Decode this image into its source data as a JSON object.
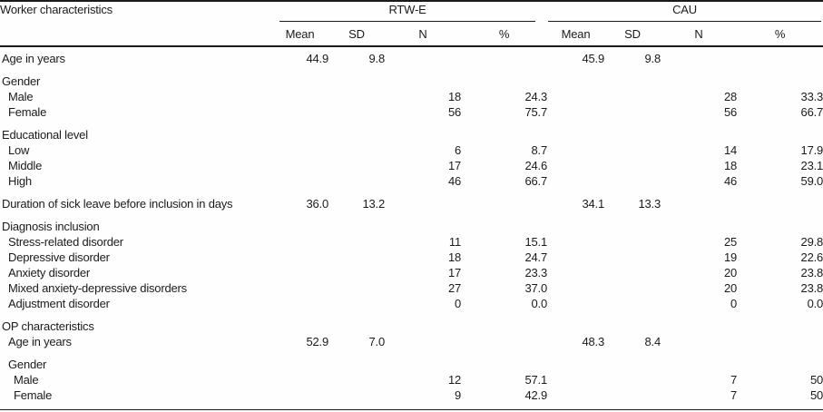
{
  "table": {
    "corner_label": "Worker characteristics",
    "group_headers": [
      {
        "label": "RTW-E"
      },
      {
        "label": "CAU"
      }
    ],
    "column_headers": [
      "Mean",
      "SD",
      "N",
      "%",
      "Mean",
      "SD",
      "N",
      "%"
    ],
    "rows": [
      {
        "label": "Age in years",
        "indent": 0,
        "section_gap": false,
        "cells": [
          "44.9",
          "9.8",
          "",
          "",
          "45.9",
          "9.8",
          "",
          ""
        ]
      },
      {
        "label": "Gender",
        "indent": 0,
        "section_gap": true,
        "cells": [
          "",
          "",
          "",
          "",
          "",
          "",
          "",
          ""
        ]
      },
      {
        "label": "Male",
        "indent": 1,
        "section_gap": false,
        "cells": [
          "",
          "",
          "18",
          "24.3",
          "",
          "",
          "28",
          "33.3"
        ]
      },
      {
        "label": "Female",
        "indent": 1,
        "section_gap": false,
        "cells": [
          "",
          "",
          "56",
          "75.7",
          "",
          "",
          "56",
          "66.7"
        ]
      },
      {
        "label": "Educational level",
        "indent": 0,
        "section_gap": true,
        "cells": [
          "",
          "",
          "",
          "",
          "",
          "",
          "",
          ""
        ]
      },
      {
        "label": "Low",
        "indent": 1,
        "section_gap": false,
        "cells": [
          "",
          "",
          "6",
          "8.7",
          "",
          "",
          "14",
          "17.9"
        ]
      },
      {
        "label": "Middle",
        "indent": 1,
        "section_gap": false,
        "cells": [
          "",
          "",
          "17",
          "24.6",
          "",
          "",
          "18",
          "23.1"
        ]
      },
      {
        "label": "High",
        "indent": 1,
        "section_gap": false,
        "cells": [
          "",
          "",
          "46",
          "66.7",
          "",
          "",
          "46",
          "59.0"
        ]
      },
      {
        "label": "Duration of sick leave before inclusion in days",
        "indent": 0,
        "section_gap": true,
        "cells": [
          "36.0",
          "13.2",
          "",
          "",
          "34.1",
          "13.3",
          "",
          ""
        ]
      },
      {
        "label": "Diagnosis inclusion",
        "indent": 0,
        "section_gap": true,
        "cells": [
          "",
          "",
          "",
          "",
          "",
          "",
          "",
          ""
        ]
      },
      {
        "label": "Stress-related disorder",
        "indent": 1,
        "section_gap": false,
        "cells": [
          "",
          "",
          "11",
          "15.1",
          "",
          "",
          "25",
          "29.8"
        ]
      },
      {
        "label": "Depressive disorder",
        "indent": 1,
        "section_gap": false,
        "cells": [
          "",
          "",
          "18",
          "24.7",
          "",
          "",
          "19",
          "22.6"
        ]
      },
      {
        "label": "Anxiety disorder",
        "indent": 1,
        "section_gap": false,
        "cells": [
          "",
          "",
          "17",
          "23.3",
          "",
          "",
          "20",
          "23.8"
        ]
      },
      {
        "label": "Mixed anxiety-depressive disorders",
        "indent": 1,
        "section_gap": false,
        "cells": [
          "",
          "",
          "27",
          "37.0",
          "",
          "",
          "20",
          "23.8"
        ]
      },
      {
        "label": "Adjustment disorder",
        "indent": 1,
        "section_gap": false,
        "cells": [
          "",
          "",
          "0",
          "0.0",
          "",
          "",
          "0",
          "0.0"
        ]
      },
      {
        "label": "OP characteristics",
        "indent": 0,
        "section_gap": true,
        "cells": [
          "",
          "",
          "",
          "",
          "",
          "",
          "",
          ""
        ]
      },
      {
        "label": "Age in years",
        "indent": 1,
        "section_gap": false,
        "cells": [
          "52.9",
          "7.0",
          "",
          "",
          "48.3",
          "8.4",
          "",
          ""
        ]
      },
      {
        "label": "Gender",
        "indent": 1,
        "section_gap": true,
        "cells": [
          "",
          "",
          "",
          "",
          "",
          "",
          "",
          ""
        ]
      },
      {
        "label": "Male",
        "indent": 2,
        "section_gap": false,
        "cells": [
          "",
          "",
          "12",
          "57.1",
          "",
          "",
          "7",
          "50"
        ]
      },
      {
        "label": "Female",
        "indent": 2,
        "section_gap": false,
        "cells": [
          "",
          "",
          "9",
          "42.9",
          "",
          "",
          "7",
          "50"
        ]
      }
    ],
    "cell_column_names": [
      "rtwe-mean",
      "rtwe-sd",
      "rtwe-n",
      "rtwe-pct",
      "cau-mean",
      "cau-sd",
      "cau-n",
      "cau-pct"
    ]
  }
}
